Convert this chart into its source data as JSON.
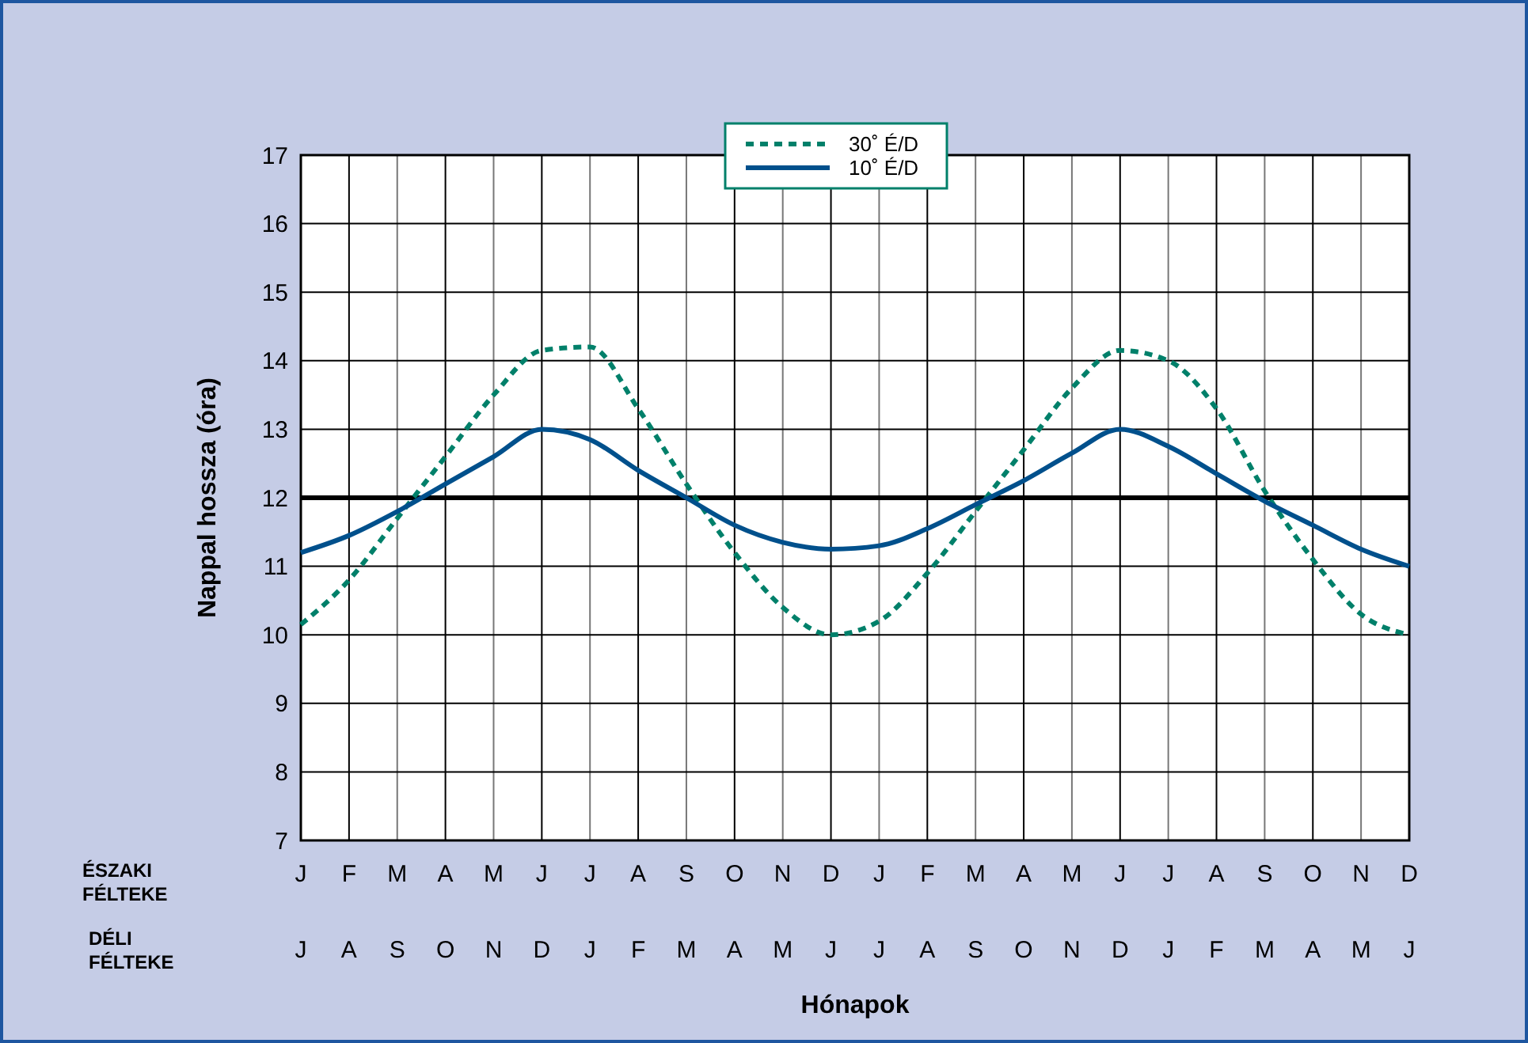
{
  "chart_data": {
    "type": "line",
    "xlabel": "Hónapok",
    "ylabel": "Nappal hossza (óra)",
    "categories": [
      "J",
      "F",
      "M",
      "A",
      "M",
      "J",
      "J",
      "A",
      "S",
      "O",
      "N",
      "D",
      "J",
      "F",
      "M",
      "A",
      "M",
      "J",
      "J",
      "A",
      "S",
      "O",
      "N",
      "D"
    ],
    "series": [
      {
        "name": "30˚ É/D",
        "color": "#00806a",
        "line_style": "dashed",
        "values": [
          10.15,
          10.8,
          11.7,
          12.6,
          13.5,
          14.15,
          14.2,
          13.3,
          12.2,
          11.2,
          10.4,
          10.0,
          10.2,
          10.9,
          11.8,
          12.7,
          13.6,
          14.15,
          14.0,
          13.3,
          12.1,
          11.1,
          10.3,
          10.0
        ]
      },
      {
        "name": "10˚ É/D",
        "color": "#00508c",
        "line_style": "solid",
        "values": [
          11.2,
          11.45,
          11.8,
          12.2,
          12.6,
          13.0,
          12.85,
          12.4,
          12.0,
          11.6,
          11.35,
          11.25,
          11.3,
          11.55,
          11.9,
          12.25,
          12.65,
          13.0,
          12.75,
          12.35,
          11.95,
          11.6,
          11.25,
          11.0
        ]
      }
    ],
    "ylim": [
      7,
      17
    ],
    "yticks": [
      7,
      8,
      9,
      10,
      11,
      12,
      13,
      14,
      15,
      16,
      17
    ],
    "grid": true,
    "legend": "top",
    "ref_lines": [
      {
        "axis": "y",
        "value": 12,
        "color": "#000000"
      }
    ],
    "annotations": [
      "ÉSZAKI FÉLTEKE",
      "DÉLI FÉLTEKE",
      "J",
      "A",
      "S",
      "O",
      "N",
      "D",
      "J",
      "F",
      "M",
      "A",
      "M",
      "J",
      "J",
      "A",
      "S",
      "O",
      "N",
      "D",
      "J",
      "F",
      "M",
      "A",
      "M",
      "J"
    ]
  }
}
